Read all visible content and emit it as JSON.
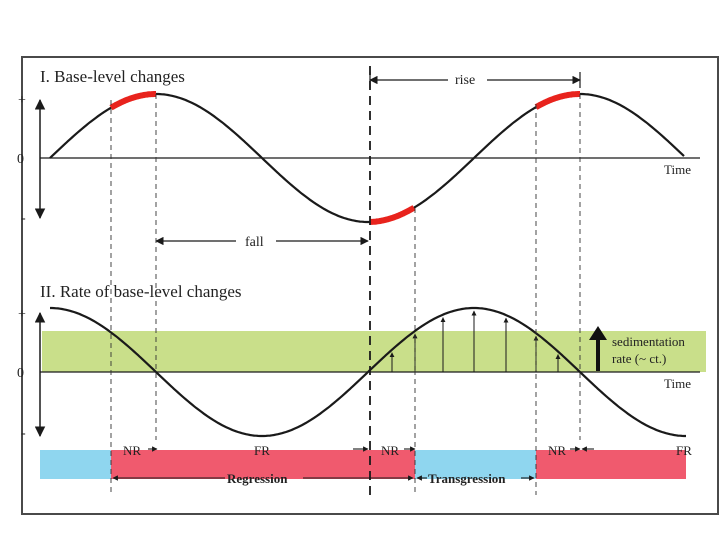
{
  "panel1": {
    "title": "I. Base-level changes",
    "y_plus": "+",
    "y_zero": "0",
    "y_minus": "-",
    "x_label": "Time",
    "rise_label": "rise",
    "fall_label": "fall"
  },
  "panel2": {
    "title": "II. Rate of base-level changes",
    "y_plus": "+",
    "y_zero": "0",
    "y_minus": "-",
    "x_label": "Time",
    "sedimentation_line1": "sedimentation",
    "sedimentation_line2": "rate (~ ct.)"
  },
  "strip": {
    "segments": [
      "NR",
      "FR",
      "NR",
      "NR",
      "FR"
    ],
    "regression": "Regression",
    "transgression": "Transgression"
  },
  "colors": {
    "frame": "#4a4a4a",
    "curve": "#1a1a1a",
    "highlight": "#e8231d",
    "sedimentation_band": "#c9df8a",
    "strip_blue": "#8fd6ef",
    "strip_red": "#f05a6e"
  }
}
